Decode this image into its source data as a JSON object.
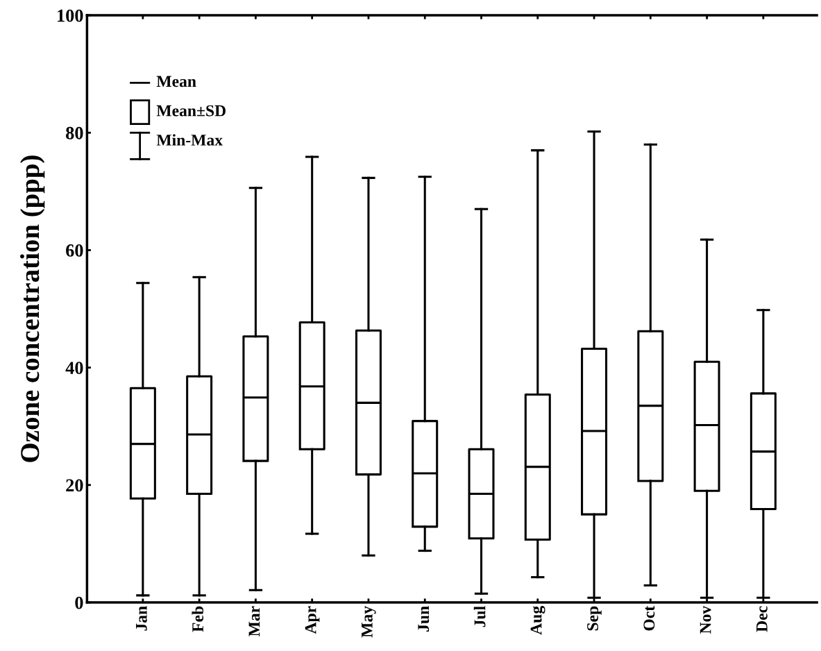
{
  "chart_data": {
    "type": "box",
    "ylabel": "Ozone concentration (ppp)",
    "categories": [
      "Jan",
      "Feb",
      "Mar",
      "Apr",
      "May",
      "Jun",
      "Jul",
      "Aug",
      "Sep",
      "Oct",
      "Nov",
      "Dec"
    ],
    "boxes": [
      {
        "low": 1.2,
        "q1": 17.7,
        "median": 27.0,
        "q3": 36.5,
        "high": 54.4
      },
      {
        "low": 1.2,
        "q1": 18.5,
        "median": 28.6,
        "q3": 38.5,
        "high": 55.4
      },
      {
        "low": 2.1,
        "q1": 24.1,
        "median": 34.9,
        "q3": 45.3,
        "high": 70.6
      },
      {
        "low": 11.7,
        "q1": 26.1,
        "median": 36.8,
        "q3": 47.7,
        "high": 75.9
      },
      {
        "low": 8.0,
        "q1": 21.8,
        "median": 34.0,
        "q3": 46.3,
        "high": 72.3
      },
      {
        "low": 8.8,
        "q1": 12.9,
        "median": 22.0,
        "q3": 30.9,
        "high": 72.5
      },
      {
        "low": 1.5,
        "q1": 10.9,
        "median": 18.5,
        "q3": 26.1,
        "high": 67.0
      },
      {
        "low": 4.3,
        "q1": 10.7,
        "median": 23.1,
        "q3": 35.4,
        "high": 77.0
      },
      {
        "low": 0.8,
        "q1": 15.0,
        "median": 29.2,
        "q3": 43.2,
        "high": 80.2
      },
      {
        "low": 2.9,
        "q1": 20.7,
        "median": 33.5,
        "q3": 46.2,
        "high": 78.0
      },
      {
        "low": 0.8,
        "q1": 19.0,
        "median": 30.2,
        "q3": 41.0,
        "high": 61.8
      },
      {
        "low": 0.8,
        "q1": 15.9,
        "median": 25.7,
        "q3": 35.6,
        "high": 49.8
      }
    ],
    "color": "#000000",
    "ylim": [
      0,
      100
    ],
    "yticks": [
      0,
      20,
      40,
      60,
      80,
      100
    ],
    "annotations": [
      "Mean",
      "Mean±SD",
      "Min-Max"
    ],
    "grid": false
  }
}
